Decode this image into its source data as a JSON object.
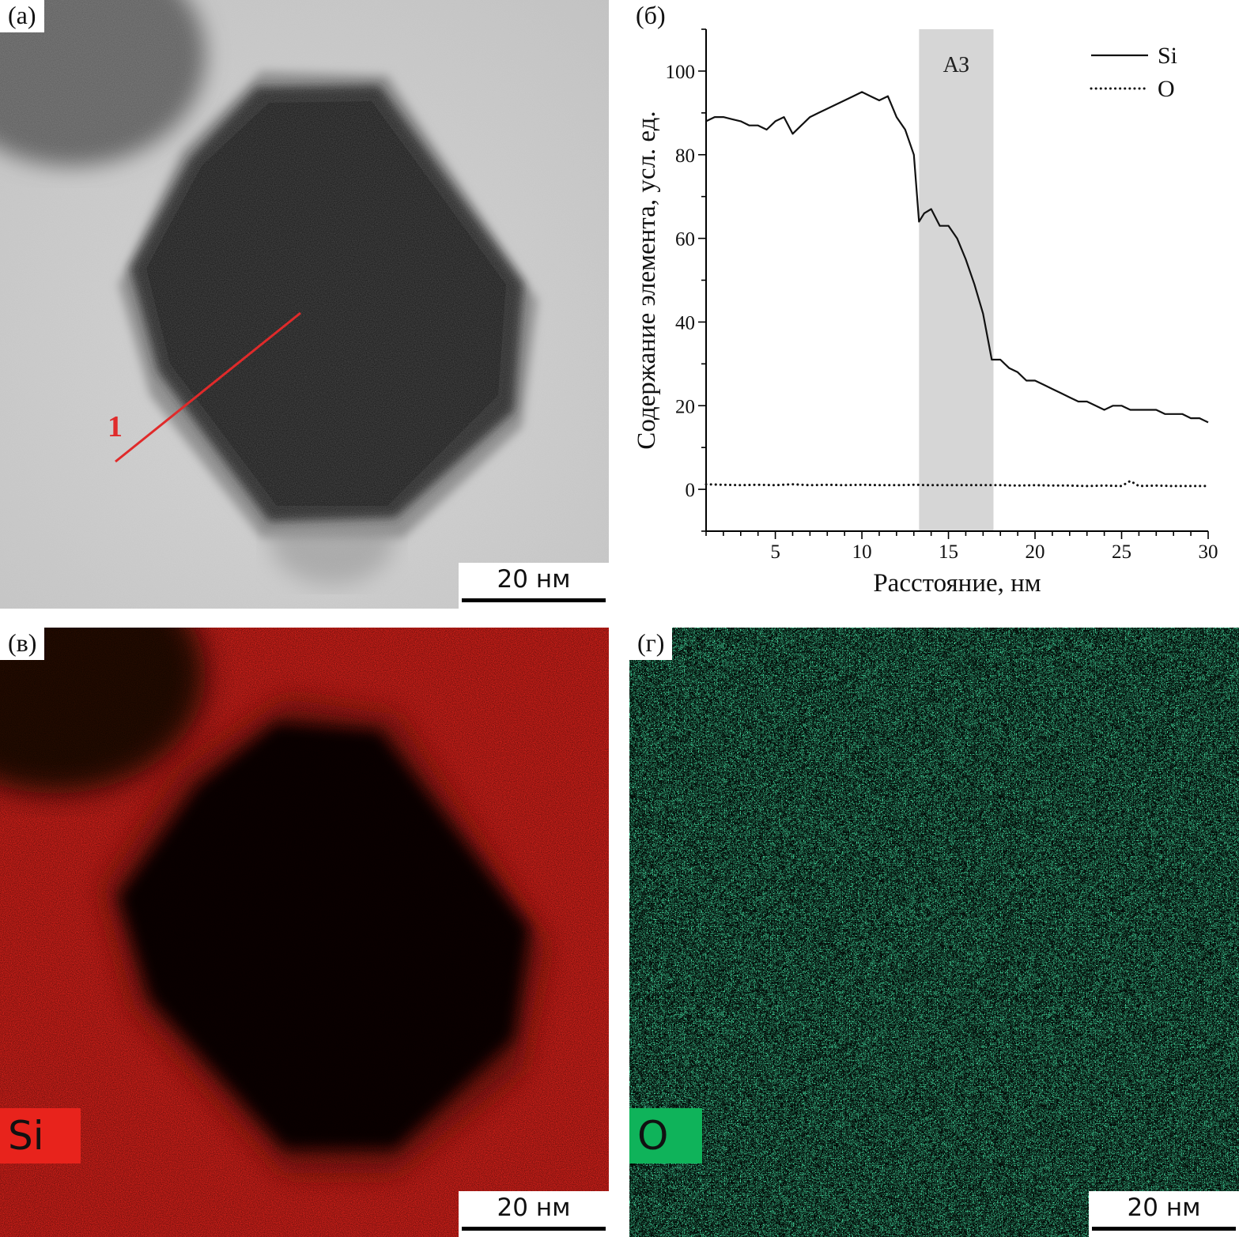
{
  "panels": {
    "a": {
      "label": "(а)",
      "scalebar": "20 нм",
      "line_marker": "1"
    },
    "b": {
      "label": "(б)"
    },
    "c": {
      "label": "(в)",
      "scalebar": "20 нм",
      "element": "Si"
    },
    "d": {
      "label": "(г)",
      "scalebar": "20 нм",
      "element": "O"
    }
  },
  "colors": {
    "si_map": "#e8231c",
    "o_map": "#0fb35a",
    "line_marker": "#e02a2a",
    "band": "#d6d6d6"
  },
  "chart_data": {
    "type": "line",
    "xlabel": "Расстояние, нм",
    "ylabel": "Содержание элемента, усл. ед.",
    "xlim": [
      1,
      30
    ],
    "ylim": [
      -10,
      110
    ],
    "xticks": [
      5,
      10,
      15,
      20,
      25,
      30
    ],
    "yticks": [
      0,
      20,
      40,
      60,
      80,
      100
    ],
    "grid": false,
    "legend_position": "top-right",
    "annotations": [
      {
        "text": "АЗ",
        "x_range": [
          13.3,
          17.6
        ],
        "type": "shaded-band"
      }
    ],
    "series": [
      {
        "name": "Si",
        "style": "solid",
        "x": [
          1,
          1.5,
          2,
          2.5,
          3,
          3.5,
          4,
          4.5,
          5,
          5.5,
          6,
          6.5,
          7,
          7.5,
          8,
          8.5,
          9,
          9.5,
          10,
          10.5,
          11,
          11.5,
          12,
          12.5,
          13,
          13.3,
          13.6,
          14,
          14.5,
          15,
          15.5,
          16,
          16.5,
          17,
          17.5,
          18,
          18.5,
          19,
          19.5,
          20,
          20.5,
          21,
          21.5,
          22,
          22.5,
          23,
          23.5,
          24,
          24.5,
          25,
          25.5,
          26,
          26.5,
          27,
          27.5,
          28,
          28.5,
          29,
          29.5,
          30
        ],
        "y": [
          88,
          89,
          89,
          88.5,
          88,
          87,
          87,
          86,
          88,
          89,
          85,
          87,
          89,
          90,
          91,
          92,
          93,
          94,
          95,
          94,
          93,
          94,
          89,
          86,
          80,
          64,
          66,
          67,
          63,
          63,
          60,
          55,
          49,
          42,
          31,
          31,
          29,
          28,
          26,
          26,
          25,
          24,
          23,
          22,
          21,
          21,
          20,
          19,
          20,
          20,
          19,
          19,
          19,
          19,
          18,
          18,
          18,
          17,
          17,
          16
        ]
      },
      {
        "name": "O",
        "style": "dotted",
        "x": [
          1,
          2,
          3,
          4,
          5,
          6,
          7,
          8,
          9,
          10,
          11,
          12,
          13,
          14,
          15,
          16,
          17,
          18,
          19,
          20,
          21,
          22,
          23,
          24,
          25,
          25.5,
          26,
          27,
          28,
          29,
          30
        ],
        "y": [
          1.2,
          1.1,
          1.0,
          1.1,
          1.0,
          1.2,
          1.0,
          1.1,
          1.0,
          1.1,
          1.0,
          1.0,
          1.1,
          1.0,
          1.0,
          1.0,
          1.0,
          1.0,
          0.9,
          1.0,
          0.9,
          0.9,
          0.8,
          0.9,
          0.8,
          2.0,
          0.8,
          0.9,
          0.8,
          0.8,
          0.8
        ]
      }
    ]
  }
}
